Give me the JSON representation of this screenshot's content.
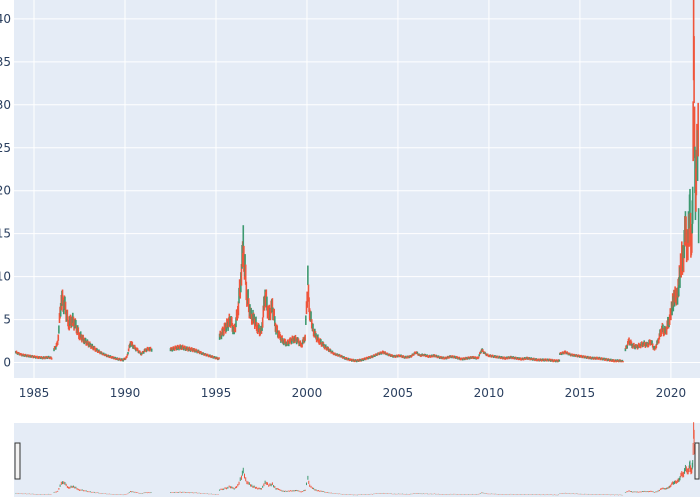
{
  "chart_data": {
    "type": "candlestick",
    "title": "",
    "xlabel": "",
    "ylabel": "",
    "xlim": [
      1983.9,
      2021.6
    ],
    "ylim": [
      -1.8,
      42.2
    ],
    "grid": true,
    "rangeslider": true,
    "x_ticks": [
      1985,
      1990,
      1995,
      2000,
      2005,
      2010,
      2015,
      2020
    ],
    "x_tick_labels": [
      "1985",
      "1990",
      "1995",
      "2000",
      "2005",
      "2010",
      "2015",
      "2020"
    ],
    "y_ticks": [
      0,
      5,
      10,
      15,
      20,
      25,
      30,
      35,
      40
    ],
    "y_tick_labels": [
      "0",
      "5",
      "10",
      "15",
      "20",
      "25",
      "30",
      "35",
      "40"
    ],
    "colors": {
      "increasing": "#3d9970",
      "decreasing": "#ef553b",
      "plot_background": "#e5ecf6",
      "grid": "#ffffff",
      "tick_text": "#2a3f5f"
    },
    "series": [
      {
        "segments": [
          {
            "x": [
              1984.0,
              1984.3,
              1984.6,
              1984.9,
              1985.2,
              1985.5,
              1985.8,
              1986.0
            ],
            "y": [
              1.2,
              0.9,
              0.8,
              0.7,
              0.6,
              0.55,
              0.6,
              0.5
            ]
          },
          {
            "x": [
              1986.1,
              1986.3,
              1986.5,
              1986.7,
              1986.9,
              1987.1,
              1987.3,
              1987.5,
              1987.8,
              1988.1,
              1988.4,
              1988.7,
              1989.0,
              1989.3,
              1989.6,
              1989.9,
              1990.1,
              1990.3,
              1990.5,
              1990.7,
              1990.9,
              1991.1,
              1991.3,
              1991.5
            ],
            "y": [
              1.5,
              2.2,
              7.5,
              6.5,
              4.5,
              5.0,
              4.2,
              3.2,
              2.5,
              2.0,
              1.5,
              1.1,
              0.8,
              0.6,
              0.4,
              0.3,
              0.6,
              2.3,
              1.8,
              1.4,
              1.0,
              1.4,
              1.6,
              1.5
            ]
          },
          {
            "x": [
              1992.5,
              1992.8,
              1993.1,
              1993.4,
              1993.7,
              1994.0,
              1994.3,
              1994.6,
              1994.9,
              1995.2
            ],
            "y": [
              1.5,
              1.7,
              1.8,
              1.6,
              1.5,
              1.3,
              1.0,
              0.8,
              0.6,
              0.4
            ]
          },
          {
            "x": [
              1995.2,
              1995.5,
              1995.8,
              1996.0,
              1996.2,
              1996.4,
              1996.5,
              1996.7,
              1996.9,
              1997.1,
              1997.3,
              1997.5,
              1997.7,
              1997.9,
              1998.1,
              1998.3,
              1998.5,
              1998.7,
              1998.9,
              1999.1,
              1999.3,
              1999.5,
              1999.7,
              1999.9,
              2000.05,
              2000.15,
              2000.3,
              2000.5,
              2000.7,
              2000.9,
              2001.2,
              2001.5,
              2001.8,
              2002.1,
              2002.4,
              2002.7,
              2003.0,
              2003.3,
              2003.6,
              2003.9,
              2004.2,
              2004.5,
              2004.8,
              2005.1,
              2005.4,
              2005.7,
              2006.0,
              2006.2,
              2006.4,
              2006.7,
              2007.0,
              2007.3,
              2007.6,
              2007.9,
              2008.2,
              2008.5,
              2008.8,
              2009.1,
              2009.4,
              2009.6,
              2009.8,
              2010.0,
              2010.3,
              2010.6,
              2010.9,
              2011.2,
              2011.5,
              2011.8,
              2012.1,
              2012.4,
              2012.7,
              2013.0,
              2013.3,
              2013.6,
              2013.9
            ],
            "y": [
              3.0,
              4.0,
              5.0,
              3.5,
              6.0,
              10.5,
              13.5,
              8.0,
              5.5,
              5.0,
              4.0,
              3.5,
              8.0,
              5.5,
              6.5,
              4.0,
              3.0,
              2.5,
              2.2,
              2.5,
              2.8,
              2.5,
              2.0,
              3.0,
              9.5,
              6.0,
              4.0,
              3.0,
              2.5,
              2.0,
              1.5,
              1.0,
              0.8,
              0.5,
              0.3,
              0.2,
              0.3,
              0.5,
              0.7,
              1.0,
              1.2,
              0.9,
              0.7,
              0.8,
              0.6,
              0.7,
              1.2,
              0.8,
              0.9,
              0.7,
              0.8,
              0.6,
              0.5,
              0.7,
              0.6,
              0.4,
              0.5,
              0.6,
              0.5,
              1.5,
              1.0,
              0.8,
              0.7,
              0.6,
              0.5,
              0.6,
              0.5,
              0.4,
              0.5,
              0.4,
              0.3,
              0.3,
              0.3,
              0.2,
              0.2
            ]
          },
          {
            "x": [
              2013.9,
              2014.2,
              2014.5,
              2014.8,
              2015.1,
              2015.4,
              2015.7,
              2016.0,
              2016.3,
              2016.6,
              2016.9,
              2017.2,
              2017.4
            ],
            "y": [
              1.0,
              1.2,
              0.9,
              0.8,
              0.7,
              0.6,
              0.5,
              0.5,
              0.4,
              0.3,
              0.2,
              0.2,
              0.1
            ]
          },
          {
            "x": [
              2017.5,
              2017.7,
              2017.9,
              2018.1,
              2018.3,
              2018.5,
              2018.7,
              2018.9,
              2019.1,
              2019.3,
              2019.5,
              2019.7,
              2019.9,
              2020.0,
              2020.1,
              2020.2,
              2020.3,
              2020.4,
              2020.5,
              2020.6,
              2020.7,
              2020.8,
              2020.9,
              2021.0,
              2021.05,
              2021.1,
              2021.15,
              2021.2,
              2021.25,
              2021.3,
              2021.35,
              2021.4,
              2021.5,
              2021.55
            ],
            "y": [
              1.5,
              2.5,
              2.0,
              1.8,
              2.0,
              2.2,
              2.0,
              2.5,
              1.5,
              2.5,
              4.0,
              3.5,
              5.0,
              5.5,
              7.0,
              8.0,
              7.0,
              9.0,
              10.0,
              12.0,
              13.0,
              15.0,
              14.0,
              16.0,
              17.0,
              15.0,
              14.0,
              18.0,
              40.0,
              25.0,
              20.0,
              22.0,
              26.0,
              8.0
            ]
          }
        ]
      }
    ]
  }
}
